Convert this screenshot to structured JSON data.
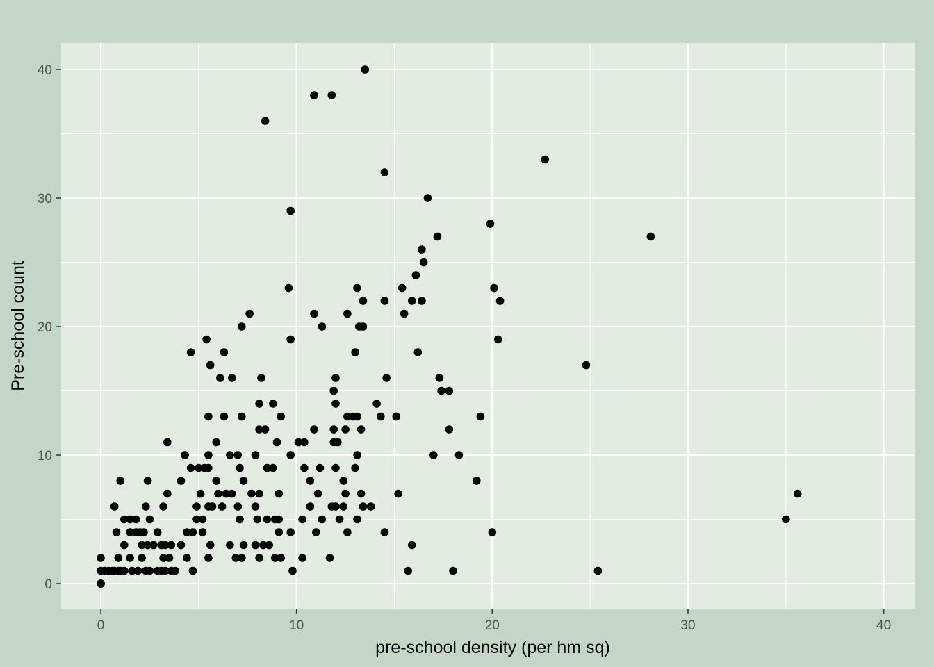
{
  "chart_data": {
    "type": "scatter",
    "xlabel": "pre-school density (per hm sq)",
    "ylabel": "Pre-school count",
    "xlim": [
      -2,
      41
    ],
    "ylim": [
      -2,
      42
    ],
    "x_ticks": [
      0,
      10,
      20,
      30,
      40
    ],
    "y_ticks": [
      0,
      10,
      20,
      30,
      40
    ],
    "x_minor": [
      5,
      15,
      25,
      35
    ],
    "y_minor": [
      5,
      15,
      25,
      35
    ],
    "grid": true,
    "legend": "none",
    "colors": {
      "page_bg": "#c5d6c6",
      "panel_bg": "#e2ece1",
      "grid": "#ffffff",
      "point": "#000000"
    },
    "points": [
      [
        0,
        0
      ],
      [
        0,
        0
      ],
      [
        0,
        0
      ],
      [
        0,
        0
      ],
      [
        0,
        0
      ],
      [
        0,
        1
      ],
      [
        0,
        2
      ],
      [
        0.2,
        1
      ],
      [
        0.4,
        1
      ],
      [
        0.6,
        1
      ],
      [
        0.7,
        1
      ],
      [
        0.9,
        1
      ],
      [
        1.0,
        1
      ],
      [
        1.2,
        1
      ],
      [
        1.6,
        1
      ],
      [
        1.9,
        1
      ],
      [
        2.3,
        1
      ],
      [
        2.5,
        1
      ],
      [
        2.9,
        1
      ],
      [
        3.1,
        1
      ],
      [
        3.3,
        1
      ],
      [
        3.6,
        1
      ],
      [
        3.8,
        1
      ],
      [
        4.7,
        1
      ],
      [
        9.8,
        1
      ],
      [
        15.7,
        1
      ],
      [
        18.0,
        1
      ],
      [
        25.4,
        1
      ],
      [
        0.9,
        2
      ],
      [
        1.5,
        2
      ],
      [
        2.1,
        2
      ],
      [
        3.2,
        2
      ],
      [
        3.5,
        2
      ],
      [
        4.4,
        2
      ],
      [
        5.5,
        2
      ],
      [
        6.9,
        2
      ],
      [
        7.2,
        2
      ],
      [
        8.1,
        2
      ],
      [
        8.9,
        2
      ],
      [
        9.2,
        2
      ],
      [
        10.3,
        2
      ],
      [
        11.7,
        2
      ],
      [
        1.2,
        3
      ],
      [
        2.1,
        3
      ],
      [
        2.4,
        3
      ],
      [
        2.7,
        3
      ],
      [
        3.1,
        3
      ],
      [
        3.3,
        3
      ],
      [
        3.6,
        3
      ],
      [
        4.1,
        3
      ],
      [
        5.6,
        3
      ],
      [
        6.6,
        3
      ],
      [
        7.3,
        3
      ],
      [
        7.9,
        3
      ],
      [
        8.3,
        3
      ],
      [
        8.6,
        3
      ],
      [
        15.9,
        3
      ],
      [
        0.8,
        4
      ],
      [
        1.5,
        4
      ],
      [
        1.8,
        4
      ],
      [
        2.0,
        4
      ],
      [
        2.2,
        4
      ],
      [
        2.9,
        4
      ],
      [
        4.4,
        4
      ],
      [
        4.7,
        4
      ],
      [
        5.2,
        4
      ],
      [
        9.1,
        4
      ],
      [
        9.7,
        4
      ],
      [
        11.0,
        4
      ],
      [
        12.6,
        4
      ],
      [
        14.5,
        4
      ],
      [
        20.0,
        4
      ],
      [
        1.2,
        5
      ],
      [
        1.5,
        5
      ],
      [
        1.8,
        5
      ],
      [
        2.5,
        5
      ],
      [
        4.9,
        5
      ],
      [
        5.2,
        5
      ],
      [
        7.1,
        5
      ],
      [
        8.0,
        5
      ],
      [
        8.5,
        5
      ],
      [
        8.9,
        5
      ],
      [
        9.1,
        5
      ],
      [
        10.3,
        5
      ],
      [
        11.3,
        5
      ],
      [
        12.2,
        5
      ],
      [
        13.1,
        5
      ],
      [
        35.0,
        5
      ],
      [
        0.7,
        6
      ],
      [
        2.3,
        6
      ],
      [
        3.2,
        6
      ],
      [
        4.9,
        6
      ],
      [
        5.5,
        6
      ],
      [
        5.7,
        6
      ],
      [
        6.2,
        6
      ],
      [
        7.0,
        6
      ],
      [
        7.9,
        6
      ],
      [
        10.7,
        6
      ],
      [
        11.8,
        6
      ],
      [
        12.0,
        6
      ],
      [
        12.4,
        6
      ],
      [
        13.4,
        6
      ],
      [
        13.8,
        6
      ],
      [
        15.2,
        7
      ],
      [
        3.4,
        7
      ],
      [
        5.1,
        7
      ],
      [
        6.0,
        7
      ],
      [
        6.4,
        7
      ],
      [
        6.7,
        7
      ],
      [
        7.7,
        7
      ],
      [
        8.1,
        7
      ],
      [
        9.1,
        7
      ],
      [
        11.1,
        7
      ],
      [
        12.5,
        7
      ],
      [
        13.3,
        7
      ],
      [
        35.6,
        7
      ],
      [
        1.0,
        8
      ],
      [
        2.4,
        8
      ],
      [
        4.1,
        8
      ],
      [
        5.9,
        8
      ],
      [
        7.3,
        8
      ],
      [
        10.7,
        8
      ],
      [
        12.4,
        8
      ],
      [
        19.2,
        8
      ],
      [
        4.6,
        9
      ],
      [
        5.0,
        9
      ],
      [
        5.3,
        9
      ],
      [
        5.5,
        9
      ],
      [
        7.1,
        9
      ],
      [
        8.5,
        9
      ],
      [
        8.8,
        9
      ],
      [
        10.4,
        9
      ],
      [
        11.2,
        9
      ],
      [
        12.0,
        9
      ],
      [
        13.0,
        9
      ],
      [
        4.3,
        10
      ],
      [
        5.5,
        10
      ],
      [
        6.6,
        10
      ],
      [
        7.0,
        10
      ],
      [
        7.9,
        10
      ],
      [
        9.7,
        10
      ],
      [
        13.1,
        10
      ],
      [
        17.0,
        10
      ],
      [
        18.3,
        10
      ],
      [
        3.4,
        11
      ],
      [
        5.9,
        11
      ],
      [
        9.0,
        11
      ],
      [
        10.1,
        11
      ],
      [
        10.4,
        11
      ],
      [
        11.9,
        11
      ],
      [
        12.1,
        11
      ],
      [
        8.1,
        12
      ],
      [
        8.4,
        12
      ],
      [
        10.9,
        12
      ],
      [
        11.9,
        12
      ],
      [
        12.5,
        12
      ],
      [
        13.3,
        12
      ],
      [
        17.8,
        12
      ],
      [
        5.5,
        13
      ],
      [
        6.3,
        13
      ],
      [
        7.2,
        13
      ],
      [
        9.2,
        13
      ],
      [
        12.6,
        13
      ],
      [
        12.9,
        13
      ],
      [
        13.1,
        13
      ],
      [
        14.3,
        13
      ],
      [
        15.1,
        13
      ],
      [
        19.4,
        13
      ],
      [
        8.1,
        14
      ],
      [
        8.8,
        14
      ],
      [
        12.0,
        14
      ],
      [
        14.1,
        14
      ],
      [
        11.9,
        15
      ],
      [
        17.4,
        15
      ],
      [
        17.8,
        15
      ],
      [
        6.1,
        16
      ],
      [
        6.7,
        16
      ],
      [
        8.2,
        16
      ],
      [
        12.0,
        16
      ],
      [
        14.6,
        16
      ],
      [
        17.3,
        16
      ],
      [
        5.6,
        17
      ],
      [
        24.8,
        17
      ],
      [
        4.6,
        18
      ],
      [
        6.3,
        18
      ],
      [
        13.0,
        18
      ],
      [
        16.2,
        18
      ],
      [
        5.4,
        19
      ],
      [
        9.7,
        19
      ],
      [
        20.3,
        19
      ],
      [
        7.2,
        20
      ],
      [
        11.3,
        20
      ],
      [
        13.2,
        20
      ],
      [
        13.4,
        20
      ],
      [
        7.6,
        21
      ],
      [
        10.9,
        21
      ],
      [
        12.6,
        21
      ],
      [
        15.5,
        21
      ],
      [
        13.4,
        22
      ],
      [
        14.5,
        22
      ],
      [
        15.9,
        22
      ],
      [
        16.4,
        22
      ],
      [
        20.4,
        22
      ],
      [
        9.6,
        23
      ],
      [
        13.1,
        23
      ],
      [
        15.4,
        23
      ],
      [
        20.1,
        23
      ],
      [
        16.1,
        24
      ],
      [
        16.5,
        25
      ],
      [
        16.4,
        26
      ],
      [
        17.2,
        27
      ],
      [
        28.1,
        27
      ],
      [
        19.9,
        28
      ],
      [
        9.7,
        29
      ],
      [
        16.7,
        30
      ],
      [
        14.5,
        32
      ],
      [
        22.7,
        33
      ],
      [
        8.4,
        36
      ],
      [
        10.9,
        38
      ],
      [
        11.8,
        38
      ],
      [
        13.5,
        40
      ]
    ]
  }
}
